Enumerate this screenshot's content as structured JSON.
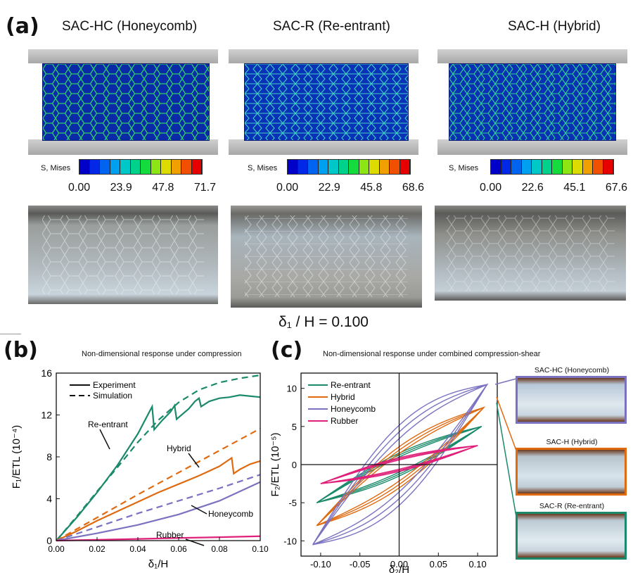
{
  "panel_labels": {
    "a": "(a)",
    "b": "(b)",
    "c": "(c)"
  },
  "models": [
    {
      "title": "SAC-HC (Honeycomb)",
      "cbar_label": "S, Mises",
      "ticks": [
        "0.00",
        "23.9",
        "47.8",
        "71.7"
      ]
    },
    {
      "title": "SAC-R (Re-entrant)",
      "cbar_label": "S, Mises",
      "ticks": [
        "0.00",
        "22.9",
        "45.8",
        "68.6"
      ]
    },
    {
      "title": "SAC-H (Hybrid)",
      "cbar_label": "S, Mises",
      "ticks": [
        "0.00",
        "22.6",
        "45.1",
        "67.6"
      ]
    }
  ],
  "colorbar_colors": [
    "#0000c8",
    "#0028e6",
    "#0064f0",
    "#00a0f0",
    "#00c8c8",
    "#00d28c",
    "#14dc3c",
    "#8ce614",
    "#dcdc00",
    "#f0a000",
    "#f05000",
    "#e60000"
  ],
  "strain_label": "δ₁ / H = 0.100",
  "chart_data": [
    {
      "type": "line",
      "title": "Non-dimensional response under compression",
      "xlabel": "δ₁/H",
      "ylabel": "F₁/ETL (10⁻⁴)",
      "xlim": [
        0,
        0.1
      ],
      "ylim": [
        0,
        16
      ],
      "xticks": [
        "0.00",
        "0.02",
        "0.04",
        "0.06",
        "0.08",
        "0.10"
      ],
      "yticks": [
        "0",
        "4",
        "8",
        "12",
        "16"
      ],
      "legend": [
        {
          "label": "Experiment",
          "style": "solid"
        },
        {
          "label": "Simulation",
          "style": "dashed"
        }
      ],
      "annotations": [
        "Re-entrant",
        "Hybrid",
        "Honeycomb",
        "Rubber"
      ],
      "series": [
        {
          "name": "Re-entrant",
          "kind": "experiment",
          "color": "#1a8a6a",
          "x": [
            0,
            0.005,
            0.01,
            0.02,
            0.03,
            0.04,
            0.047,
            0.048,
            0.052,
            0.056,
            0.058,
            0.059,
            0.065,
            0.068,
            0.07,
            0.071,
            0.075,
            0.08,
            0.085,
            0.09,
            0.095,
            0.1
          ],
          "y": [
            0,
            1.1,
            2.2,
            4.6,
            7.2,
            10.2,
            12.8,
            10.6,
            11.5,
            12.3,
            12.9,
            11.6,
            12.6,
            13.3,
            13.6,
            12.8,
            13.3,
            13.6,
            13.7,
            13.9,
            13.8,
            13.7
          ]
        },
        {
          "name": "Re-entrant",
          "kind": "simulation",
          "color": "#1a8a6a",
          "x": [
            0,
            0.01,
            0.02,
            0.03,
            0.04,
            0.05,
            0.06,
            0.07,
            0.08,
            0.09,
            0.1
          ],
          "y": [
            0,
            2.3,
            4.7,
            7.0,
            9.4,
            11.5,
            13.2,
            14.4,
            15.1,
            15.5,
            15.8
          ]
        },
        {
          "name": "Hybrid",
          "kind": "experiment",
          "color": "#e06a10",
          "x": [
            0,
            0.01,
            0.02,
            0.03,
            0.04,
            0.05,
            0.06,
            0.07,
            0.08,
            0.086,
            0.087,
            0.09,
            0.095,
            0.1
          ],
          "y": [
            0,
            0.9,
            1.9,
            2.8,
            3.7,
            4.6,
            5.4,
            6.2,
            7.1,
            7.9,
            6.4,
            6.8,
            7.3,
            7.6
          ]
        },
        {
          "name": "Hybrid",
          "kind": "simulation",
          "color": "#e06a10",
          "x": [
            0,
            0.02,
            0.04,
            0.06,
            0.08,
            0.1
          ],
          "y": [
            0,
            2.2,
            4.4,
            6.5,
            8.6,
            10.7
          ]
        },
        {
          "name": "Honeycomb",
          "kind": "experiment",
          "color": "#7a72c0",
          "x": [
            0,
            0.02,
            0.04,
            0.06,
            0.08,
            0.1
          ],
          "y": [
            0,
            0.7,
            1.5,
            2.5,
            3.8,
            5.6
          ]
        },
        {
          "name": "Honeycomb",
          "kind": "simulation",
          "color": "#7a72c0",
          "x": [
            0,
            0.02,
            0.04,
            0.06,
            0.08,
            0.1
          ],
          "y": [
            0,
            1.3,
            2.6,
            3.8,
            5.0,
            6.3
          ]
        },
        {
          "name": "Rubber",
          "kind": "experiment",
          "color": "#e0207a",
          "x": [
            0,
            0.02,
            0.04,
            0.06,
            0.08,
            0.1
          ],
          "y": [
            0,
            0.08,
            0.16,
            0.25,
            0.33,
            0.42
          ]
        }
      ]
    },
    {
      "type": "line",
      "title": "Non-dimensional response under combined compression-shear",
      "xlabel": "δ₂/H",
      "ylabel": "F₂/ETL (10⁻⁵)",
      "xlim": [
        -0.125,
        0.125
      ],
      "ylim": [
        -12,
        12
      ],
      "xticks": [
        "-0.10",
        "-0.05",
        "0.00",
        "0.05",
        "0.10"
      ],
      "yticks": [
        "-10",
        "-5",
        "0",
        "5",
        "10"
      ],
      "legend_entries": [
        "Re-entrant",
        "Hybrid",
        "Honeycomb",
        "Rubber"
      ],
      "series": [
        {
          "name": "Re-entrant",
          "color": "#1a8a6a",
          "loop": {
            "xmin": -0.105,
            "xmax": 0.105,
            "ylo": -5.0,
            "yhi": 5.0,
            "w": 1.0
          }
        },
        {
          "name": "Hybrid",
          "color": "#e06a10",
          "loop": {
            "xmin": -0.105,
            "xmax": 0.108,
            "ylo": -8.0,
            "yhi": 7.5,
            "w": 1.8
          }
        },
        {
          "name": "Honeycomb",
          "color": "#7a72c0",
          "loop": {
            "xmin": -0.11,
            "xmax": 0.112,
            "ylo": -10.5,
            "yhi": 10.5,
            "w": 3.5
          }
        },
        {
          "name": "Rubber",
          "color": "#e0207a",
          "loop": {
            "xmin": -0.1,
            "xmax": 0.1,
            "ylo": -2.5,
            "yhi": 2.5,
            "w": 0.6
          }
        }
      ],
      "inset_photos": [
        {
          "label": "SAC-HC (Honeycomb)",
          "border": "#7a72c0"
        },
        {
          "label": "SAC-H (Hybrid)",
          "border": "#e06a10"
        },
        {
          "label": "SAC-R (Re-entrant)",
          "border": "#1a8a6a"
        }
      ]
    }
  ]
}
